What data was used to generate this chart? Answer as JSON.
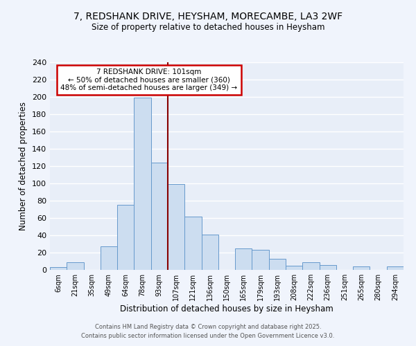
{
  "title": "7, REDSHANK DRIVE, HEYSHAM, MORECAMBE, LA3 2WF",
  "subtitle": "Size of property relative to detached houses in Heysham",
  "xlabel": "Distribution of detached houses by size in Heysham",
  "ylabel": "Number of detached properties",
  "bar_labels": [
    "6sqm",
    "21sqm",
    "35sqm",
    "49sqm",
    "64sqm",
    "78sqm",
    "93sqm",
    "107sqm",
    "121sqm",
    "136sqm",
    "150sqm",
    "165sqm",
    "179sqm",
    "193sqm",
    "208sqm",
    "222sqm",
    "236sqm",
    "251sqm",
    "265sqm",
    "280sqm",
    "294sqm"
  ],
  "bar_values": [
    3,
    9,
    0,
    27,
    75,
    199,
    124,
    99,
    62,
    41,
    0,
    25,
    23,
    13,
    5,
    9,
    6,
    0,
    4,
    0,
    4
  ],
  "bar_color": "#ccddf0",
  "bar_edge_color": "#6699cc",
  "background_color": "#e8eef8",
  "grid_color": "#ffffff",
  "ylim": [
    0,
    240
  ],
  "yticks": [
    0,
    20,
    40,
    60,
    80,
    100,
    120,
    140,
    160,
    180,
    200,
    220,
    240
  ],
  "annotation_title": "7 REDSHANK DRIVE: 101sqm",
  "annotation_line1": "← 50% of detached houses are smaller (360)",
  "annotation_line2": "48% of semi-detached houses are larger (349) →",
  "annotation_box_color": "#ffffff",
  "annotation_border_color": "#cc0000",
  "vline_color": "#880000",
  "vline_x": 6.5,
  "footer1": "Contains HM Land Registry data © Crown copyright and database right 2025.",
  "footer2": "Contains public sector information licensed under the Open Government Licence v3.0.",
  "fig_facecolor": "#f0f4fc"
}
